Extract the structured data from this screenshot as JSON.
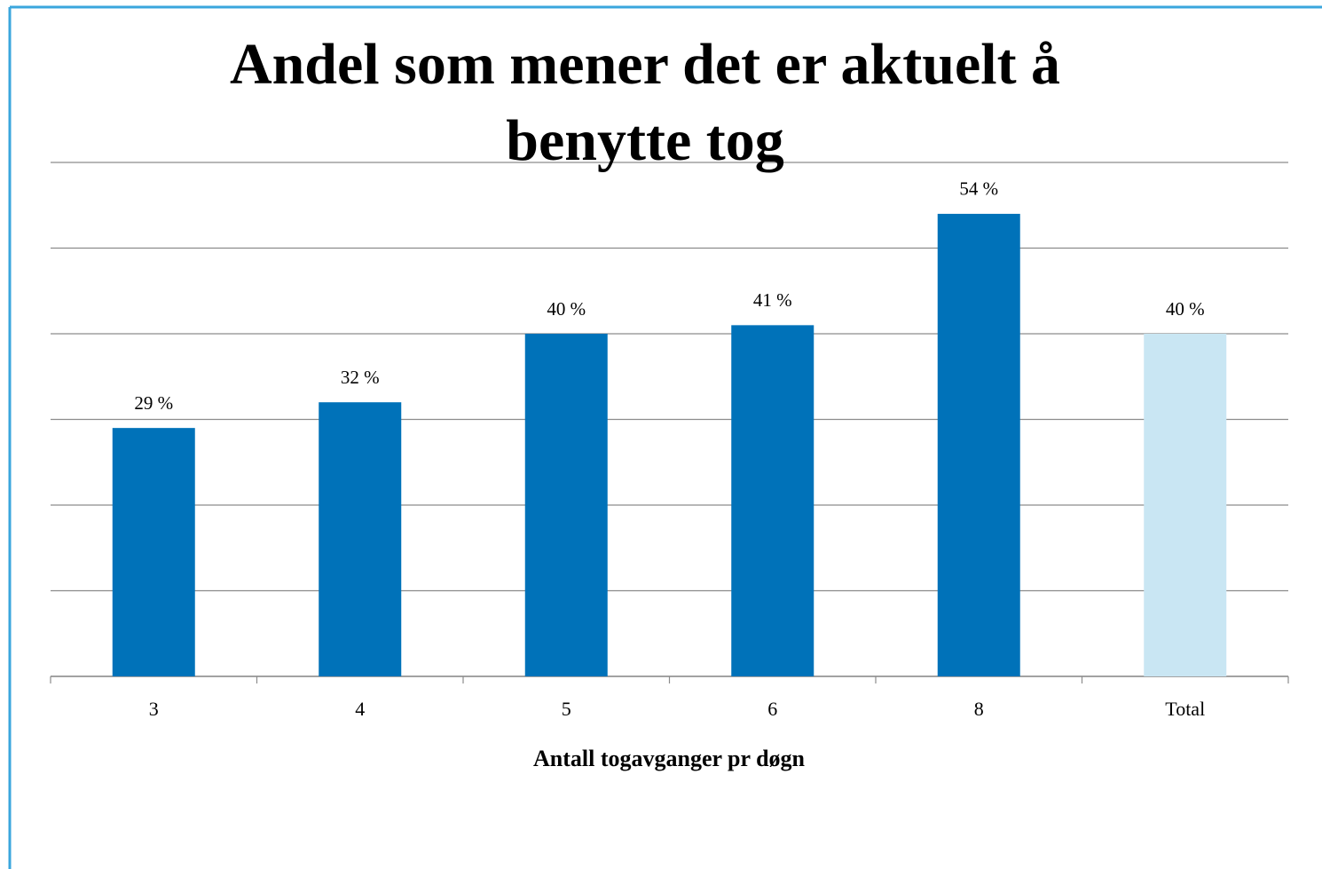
{
  "chart_data": {
    "type": "bar",
    "title": "Andel som mener det er aktuelt å benytte tog",
    "x_label": "Antall togavganger pr døgn",
    "categories": [
      "3",
      "4",
      "5",
      "6",
      "8",
      "Total"
    ],
    "values": [
      29,
      32,
      40,
      41,
      54,
      40
    ],
    "value_labels": [
      "29 %",
      "32 %",
      "40 %",
      "41 %",
      "54 %",
      "40 %"
    ],
    "colors": [
      "#0072b9",
      "#0072b9",
      "#0072b9",
      "#0072b9",
      "#0072b9",
      "#c9e6f3"
    ],
    "ylim": [
      0,
      60
    ],
    "yticks": [
      0,
      10,
      20,
      30,
      40,
      50,
      60
    ],
    "grid": true
  }
}
